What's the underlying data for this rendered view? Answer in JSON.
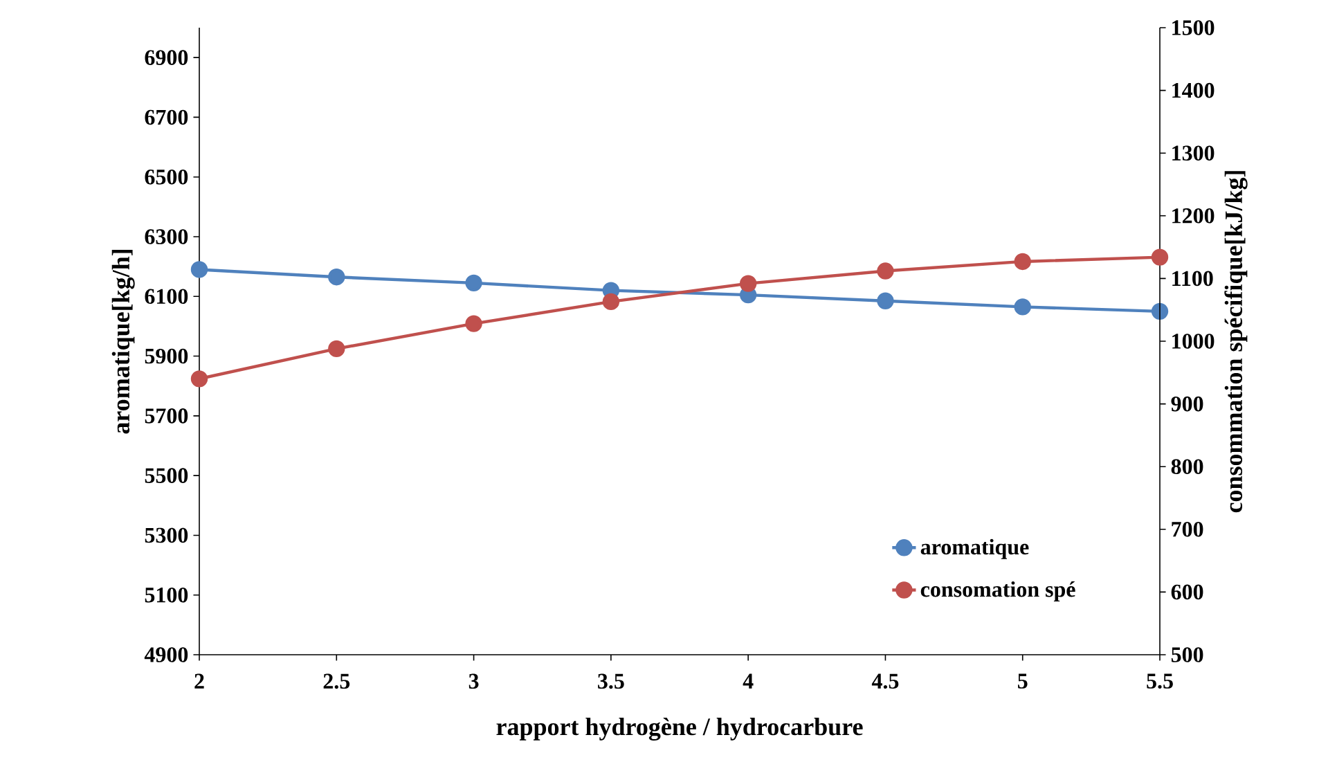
{
  "chart_data": {
    "type": "line",
    "xlabel": "rapport hydrogène / hydrocarbure",
    "ylabel": "aromatique[kg/h]",
    "y2label": "consommation spécifique[kJ/kg]",
    "x": [
      2,
      2.5,
      3,
      3.5,
      4,
      4.5,
      5,
      5.5
    ],
    "series": [
      {
        "name": "aromatique",
        "color": "#4f81bd",
        "values": [
          6190,
          6165,
          6145,
          6120,
          6105,
          6085,
          6065,
          6050
        ]
      },
      {
        "name": "consomation spé",
        "color": "#c0504d",
        "axis": "y2",
        "values": [
          940,
          988,
          1028,
          1063,
          1092,
          1112,
          1127,
          1134
        ]
      }
    ],
    "xlim": [
      2,
      5.5
    ],
    "xticks": [
      2,
      2.5,
      3,
      3.5,
      4,
      4.5,
      5,
      5.5
    ],
    "ylim": [
      4900,
      7000
    ],
    "yticks": [
      4900,
      5100,
      5300,
      5500,
      5700,
      5900,
      6100,
      6300,
      6500,
      6700,
      6900
    ],
    "y2lim": [
      500,
      1500
    ],
    "y2ticks": [
      500,
      600,
      700,
      800,
      900,
      1000,
      1100,
      1200,
      1300,
      1400,
      1500
    ],
    "marker": "circle",
    "line_style": "solid",
    "grid": false,
    "legend": "bottom right"
  }
}
